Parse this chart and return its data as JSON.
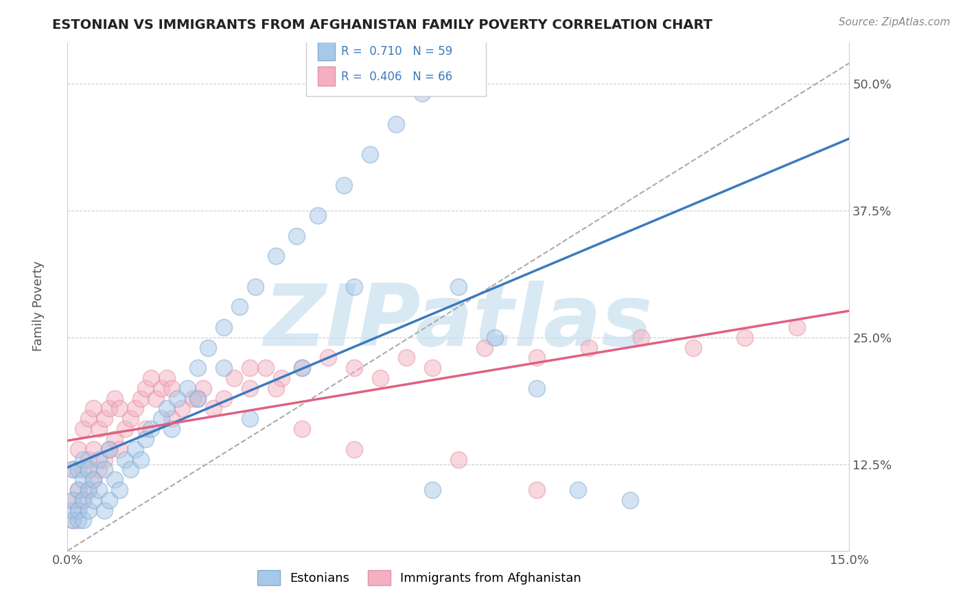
{
  "title": "ESTONIAN VS IMMIGRANTS FROM AFGHANISTAN FAMILY POVERTY CORRELATION CHART",
  "source_text": "Source: ZipAtlas.com",
  "ylabel": "Family Poverty",
  "xlim": [
    0.0,
    0.15
  ],
  "ylim": [
    0.04,
    0.54
  ],
  "ytick_labels": [
    "12.5%",
    "25.0%",
    "37.5%",
    "50.0%"
  ],
  "ytick_positions": [
    0.125,
    0.25,
    0.375,
    0.5
  ],
  "blue_scatter_color": "#a8c8e8",
  "pink_scatter_color": "#f4b0c0",
  "trend_blue": "#3a7abf",
  "trend_pink": "#e06080",
  "ref_line_color": "#aaaaaa",
  "watermark": "ZIPatlas",
  "watermark_color": "#c8e0f0",
  "legend_R_blue": "R =  0.710",
  "legend_N_blue": "N = 59",
  "legend_R_pink": "R =  0.406",
  "legend_N_pink": "N = 66",
  "label_blue": "Estonians",
  "label_pink": "Immigrants from Afghanistan",
  "legend_text_color": "#3a7abf",
  "ytick_color": "#3a7abf",
  "blue_scatter_x": [
    0.001,
    0.001,
    0.001,
    0.001,
    0.002,
    0.002,
    0.002,
    0.002,
    0.003,
    0.003,
    0.003,
    0.003,
    0.004,
    0.004,
    0.004,
    0.005,
    0.005,
    0.006,
    0.006,
    0.007,
    0.007,
    0.008,
    0.008,
    0.009,
    0.01,
    0.011,
    0.012,
    0.013,
    0.014,
    0.015,
    0.016,
    0.018,
    0.019,
    0.021,
    0.023,
    0.025,
    0.027,
    0.03,
    0.033,
    0.036,
    0.04,
    0.044,
    0.048,
    0.053,
    0.058,
    0.063,
    0.068,
    0.075,
    0.082,
    0.09,
    0.098,
    0.108,
    0.055,
    0.07,
    0.035,
    0.045,
    0.02,
    0.025,
    0.03
  ],
  "blue_scatter_y": [
    0.07,
    0.08,
    0.09,
    0.12,
    0.07,
    0.08,
    0.1,
    0.12,
    0.07,
    0.09,
    0.11,
    0.13,
    0.08,
    0.1,
    0.12,
    0.09,
    0.11,
    0.1,
    0.13,
    0.08,
    0.12,
    0.09,
    0.14,
    0.11,
    0.1,
    0.13,
    0.12,
    0.14,
    0.13,
    0.15,
    0.16,
    0.17,
    0.18,
    0.19,
    0.2,
    0.22,
    0.24,
    0.26,
    0.28,
    0.3,
    0.33,
    0.35,
    0.37,
    0.4,
    0.43,
    0.46,
    0.49,
    0.3,
    0.25,
    0.2,
    0.1,
    0.09,
    0.3,
    0.1,
    0.17,
    0.22,
    0.16,
    0.19,
    0.22
  ],
  "pink_scatter_x": [
    0.001,
    0.001,
    0.001,
    0.002,
    0.002,
    0.002,
    0.003,
    0.003,
    0.003,
    0.004,
    0.004,
    0.004,
    0.005,
    0.005,
    0.005,
    0.006,
    0.006,
    0.007,
    0.007,
    0.008,
    0.008,
    0.009,
    0.009,
    0.01,
    0.01,
    0.011,
    0.012,
    0.013,
    0.014,
    0.015,
    0.016,
    0.017,
    0.018,
    0.019,
    0.02,
    0.022,
    0.024,
    0.026,
    0.028,
    0.03,
    0.032,
    0.035,
    0.038,
    0.041,
    0.045,
    0.05,
    0.055,
    0.06,
    0.065,
    0.07,
    0.08,
    0.09,
    0.1,
    0.11,
    0.12,
    0.13,
    0.14,
    0.055,
    0.075,
    0.09,
    0.035,
    0.045,
    0.025,
    0.04,
    0.015,
    0.02
  ],
  "pink_scatter_y": [
    0.07,
    0.09,
    0.12,
    0.08,
    0.1,
    0.14,
    0.09,
    0.12,
    0.16,
    0.1,
    0.13,
    0.17,
    0.11,
    0.14,
    0.18,
    0.12,
    0.16,
    0.13,
    0.17,
    0.14,
    0.18,
    0.15,
    0.19,
    0.14,
    0.18,
    0.16,
    0.17,
    0.18,
    0.19,
    0.2,
    0.21,
    0.19,
    0.2,
    0.21,
    0.2,
    0.18,
    0.19,
    0.2,
    0.18,
    0.19,
    0.21,
    0.2,
    0.22,
    0.21,
    0.22,
    0.23,
    0.22,
    0.21,
    0.23,
    0.22,
    0.24,
    0.23,
    0.24,
    0.25,
    0.24,
    0.25,
    0.26,
    0.14,
    0.13,
    0.1,
    0.22,
    0.16,
    0.19,
    0.2,
    0.16,
    0.17
  ]
}
